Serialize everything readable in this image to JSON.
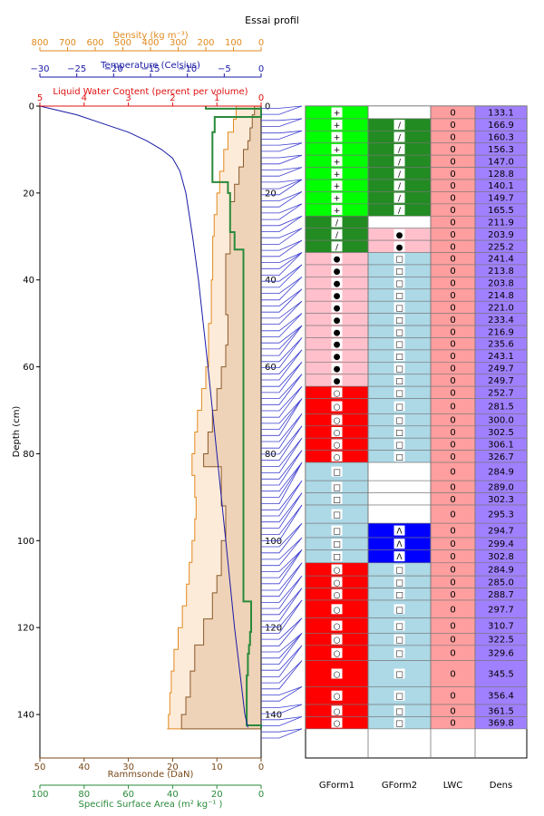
{
  "chart_data": {
    "type": "line",
    "title": "Essai profil",
    "depth_axis": {
      "label": "Depth (cm)",
      "range": [
        0,
        150
      ],
      "ticks": [
        0,
        20,
        40,
        60,
        80,
        100,
        120,
        140
      ]
    },
    "density_axis": {
      "label": "Density (kg m⁻³)",
      "range": [
        800,
        0
      ],
      "ticks": [
        800,
        700,
        600,
        500,
        400,
        300,
        200,
        100,
        0
      ],
      "color": "#e08a1e"
    },
    "temperature_axis": {
      "label": "Temperature (Celsius)",
      "range": [
        -30,
        0
      ],
      "ticks": [
        -30,
        -25,
        -20,
        -15,
        -10,
        -5,
        0
      ],
      "color": "#1a1aa6"
    },
    "lwc_axis": {
      "label": "Liquid Water Content (percent per volume)",
      "range": [
        5,
        0
      ],
      "ticks": [
        5,
        4,
        3,
        2,
        1,
        0
      ],
      "color": "#e01010"
    },
    "ram_axis": {
      "label": "Rammsonde (DaN)",
      "range": [
        50,
        0
      ],
      "ticks": [
        50,
        40,
        30,
        20,
        10,
        0
      ],
      "color": "#7a4a1a"
    },
    "ssa_axis": {
      "label": "Specific Surface Area (m²  kg⁻¹ )",
      "range": [
        100,
        0
      ],
      "ticks": [
        100,
        80,
        60,
        40,
        20,
        0
      ],
      "color": "#2a8a3a"
    },
    "temperature_profile": {
      "depth": [
        0,
        2,
        4,
        6,
        8,
        10,
        12,
        15,
        20,
        30,
        40,
        60,
        80,
        100,
        120,
        140,
        143
      ],
      "values": [
        -30,
        -25,
        -21.5,
        -18,
        -15.5,
        -13.5,
        -12,
        -11,
        -10.2,
        -9.3,
        -8.5,
        -7.2,
        -6,
        -4.8,
        -3.6,
        -2.2,
        -1.8
      ]
    },
    "ssa_profile": {
      "depth": [
        0,
        0.6,
        2.5,
        6,
        14.5,
        17.5,
        20,
        29,
        33,
        61,
        64,
        109,
        114,
        121,
        124,
        126,
        131,
        142.5,
        143.2
      ],
      "values": [
        25,
        0,
        21,
        22,
        22,
        15,
        14,
        12,
        8,
        8,
        8,
        8,
        4.5,
        5,
        5.5,
        6,
        6.5,
        0,
        0
      ]
    },
    "rammsonde_profile": {
      "depth": [
        0,
        2,
        5,
        8,
        10,
        14,
        18,
        22,
        28,
        34,
        40,
        48,
        55,
        60,
        65,
        70,
        75,
        80,
        83,
        88,
        92,
        96,
        100,
        104,
        108,
        112,
        118,
        124,
        130,
        136,
        140,
        143.3
      ],
      "values": [
        1.5,
        2,
        2.5,
        3,
        4,
        5,
        6,
        7,
        7,
        8,
        8,
        7.5,
        8,
        9,
        10,
        11,
        12,
        13,
        9,
        9,
        8,
        8,
        9,
        9,
        10,
        11,
        13,
        15,
        16,
        17,
        18,
        18
      ]
    },
    "density_envelope_profile": {
      "depth": [
        0,
        3,
        6,
        10,
        15,
        20,
        25,
        30,
        40,
        50,
        60,
        65,
        70,
        75,
        80,
        85,
        90,
        95,
        100,
        105,
        110,
        115,
        120,
        125,
        130,
        135,
        140,
        143.3
      ],
      "values": [
        90,
        100,
        120,
        135,
        150,
        160,
        170,
        175,
        180,
        190,
        200,
        215,
        230,
        240,
        250,
        240,
        235,
        240,
        250,
        260,
        270,
        285,
        300,
        315,
        325,
        330,
        335,
        340
      ]
    },
    "layer_boundaries_depth": [
      0.5,
      1.9,
      3.3,
      4.7,
      6.2,
      7.6,
      9.0,
      10.4,
      11.9,
      13.3,
      14.7,
      16.1,
      17.5,
      19.0,
      20.4,
      21.8,
      23.2,
      24.6,
      26.1,
      27.5,
      28.9,
      30.3,
      31.8,
      33.2,
      34.6,
      36.0,
      37.4,
      38.9,
      40.3,
      41.7,
      43.1,
      44.6,
      46.0,
      47.4,
      48.8,
      50.2,
      51.7,
      53.1,
      54.5,
      55.9,
      57.4,
      58.8,
      60.2,
      61.6,
      63.0,
      64.5,
      65.9,
      67.3,
      68.7,
      70.1,
      71.6,
      73.0,
      74.4,
      75.8,
      77.2,
      78.7,
      80.1,
      81.5,
      82.9,
      84.4,
      85.8,
      87.2,
      88.6,
      90.0,
      91.5,
      92.9,
      94.3,
      95.7,
      97.1,
      98.6,
      100.0,
      101.4,
      102.8,
      104.3,
      105.7,
      107.1,
      108.5,
      109.9,
      111.4,
      112.8,
      114.2,
      115.6,
      117.0,
      118.5,
      119.9,
      121.3,
      122.7,
      124.2,
      125.6,
      127.0,
      128.4,
      129.8,
      131.3,
      132.7,
      134.1,
      135.5,
      136.9,
      138.4,
      139.8,
      141.2,
      142.6,
      144.0,
      145.4
    ]
  },
  "table": {
    "columns": [
      "GForm1",
      "GForm2",
      "LWC",
      "Dens"
    ],
    "colors": {
      "green": "#00ff00",
      "dark_green": "#228b22",
      "pink": "#ffc0cb",
      "light_blue": "#add8e6",
      "red": "#ff0000",
      "blue": "#0000ff",
      "lwc": "#ff9e9e",
      "dens": "#a080ff",
      "white": "#ffffff"
    },
    "rows": [
      {
        "top": 0,
        "bottom": 2.9,
        "g1": "+",
        "g1c": "green",
        "g2": "",
        "g2c": "white",
        "lwc": "0",
        "dens": "133.1"
      },
      {
        "top": 2.9,
        "bottom": 5.7,
        "g1": "+",
        "g1c": "green",
        "g2": "/",
        "g2c": "dark_green",
        "lwc": "0",
        "dens": "166.9"
      },
      {
        "top": 5.7,
        "bottom": 8.5,
        "g1": "+",
        "g1c": "green",
        "g2": "/",
        "g2c": "dark_green",
        "lwc": "0",
        "dens": "160.3"
      },
      {
        "top": 8.5,
        "bottom": 11.3,
        "g1": "+",
        "g1c": "green",
        "g2": "/",
        "g2c": "dark_green",
        "lwc": "0",
        "dens": "156.3"
      },
      {
        "top": 11.3,
        "bottom": 14.1,
        "g1": "+",
        "g1c": "green",
        "g2": "/",
        "g2c": "dark_green",
        "lwc": "0",
        "dens": "147.0"
      },
      {
        "top": 14.1,
        "bottom": 16.9,
        "g1": "+",
        "g1c": "green",
        "g2": "/",
        "g2c": "dark_green",
        "lwc": "0",
        "dens": "128.8"
      },
      {
        "top": 16.9,
        "bottom": 19.7,
        "g1": "+",
        "g1c": "green",
        "g2": "/",
        "g2c": "dark_green",
        "lwc": "0",
        "dens": "140.1"
      },
      {
        "top": 19.7,
        "bottom": 22.5,
        "g1": "+",
        "g1c": "green",
        "g2": "/",
        "g2c": "dark_green",
        "lwc": "0",
        "dens": "149.7"
      },
      {
        "top": 22.5,
        "bottom": 25.3,
        "g1": "+",
        "g1c": "green",
        "g2": "/",
        "g2c": "dark_green",
        "lwc": "0",
        "dens": "165.5"
      },
      {
        "top": 25.3,
        "bottom": 28.1,
        "g1": "/",
        "g1c": "dark_green",
        "g2": "",
        "g2c": "white",
        "lwc": "0",
        "dens": "211.9"
      },
      {
        "top": 28.1,
        "bottom": 30.9,
        "g1": "/",
        "g1c": "dark_green",
        "g2": "●",
        "g2c": "pink",
        "lwc": "0",
        "dens": "203.9"
      },
      {
        "top": 30.9,
        "bottom": 33.7,
        "g1": "/",
        "g1c": "dark_green",
        "g2": "●",
        "g2c": "pink",
        "lwc": "0",
        "dens": "225.2"
      },
      {
        "top": 33.7,
        "bottom": 36.5,
        "g1": "●",
        "g1c": "pink",
        "g2": "□",
        "g2c": "light_blue",
        "lwc": "0",
        "dens": "241.4"
      },
      {
        "top": 36.5,
        "bottom": 39.3,
        "g1": "●",
        "g1c": "pink",
        "g2": "□",
        "g2c": "light_blue",
        "lwc": "0",
        "dens": "213.8"
      },
      {
        "top": 39.3,
        "bottom": 42.1,
        "g1": "●",
        "g1c": "pink",
        "g2": "□",
        "g2c": "light_blue",
        "lwc": "0",
        "dens": "203.8"
      },
      {
        "top": 42.1,
        "bottom": 44.9,
        "g1": "●",
        "g1c": "pink",
        "g2": "□",
        "g2c": "light_blue",
        "lwc": "0",
        "dens": "214.8"
      },
      {
        "top": 44.9,
        "bottom": 47.7,
        "g1": "●",
        "g1c": "pink",
        "g2": "□",
        "g2c": "light_blue",
        "lwc": "0",
        "dens": "221.0"
      },
      {
        "top": 47.7,
        "bottom": 50.5,
        "g1": "●",
        "g1c": "pink",
        "g2": "□",
        "g2c": "light_blue",
        "lwc": "0",
        "dens": "233.4"
      },
      {
        "top": 50.5,
        "bottom": 53.3,
        "g1": "●",
        "g1c": "pink",
        "g2": "□",
        "g2c": "light_blue",
        "lwc": "0",
        "dens": "216.9"
      },
      {
        "top": 53.3,
        "bottom": 56.1,
        "g1": "●",
        "g1c": "pink",
        "g2": "□",
        "g2c": "light_blue",
        "lwc": "0",
        "dens": "235.6"
      },
      {
        "top": 56.1,
        "bottom": 58.9,
        "g1": "●",
        "g1c": "pink",
        "g2": "□",
        "g2c": "light_blue",
        "lwc": "0",
        "dens": "243.1"
      },
      {
        "top": 58.9,
        "bottom": 61.7,
        "g1": "●",
        "g1c": "pink",
        "g2": "□",
        "g2c": "light_blue",
        "lwc": "0",
        "dens": "249.7"
      },
      {
        "top": 61.7,
        "bottom": 64.5,
        "g1": "●",
        "g1c": "pink",
        "g2": "□",
        "g2c": "light_blue",
        "lwc": "0",
        "dens": "249.7"
      },
      {
        "top": 64.5,
        "bottom": 67.3,
        "g1": "○",
        "g1c": "red",
        "g2": "□",
        "g2c": "light_blue",
        "lwc": "0",
        "dens": "252.7"
      },
      {
        "top": 67.3,
        "bottom": 70.8,
        "g1": "○",
        "g1c": "red",
        "g2": "□",
        "g2c": "light_blue",
        "lwc": "0",
        "dens": "281.5"
      },
      {
        "top": 70.8,
        "bottom": 73.6,
        "g1": "○",
        "g1c": "red",
        "g2": "□",
        "g2c": "light_blue",
        "lwc": "0",
        "dens": "300.0"
      },
      {
        "top": 73.6,
        "bottom": 76.4,
        "g1": "○",
        "g1c": "red",
        "g2": "□",
        "g2c": "light_blue",
        "lwc": "0",
        "dens": "302.5"
      },
      {
        "top": 76.4,
        "bottom": 79.2,
        "g1": "○",
        "g1c": "red",
        "g2": "□",
        "g2c": "light_blue",
        "lwc": "0",
        "dens": "306.1"
      },
      {
        "top": 79.2,
        "bottom": 82.0,
        "g1": "○",
        "g1c": "red",
        "g2": "□",
        "g2c": "light_blue",
        "lwc": "0",
        "dens": "326.7"
      },
      {
        "top": 82.0,
        "bottom": 86.2,
        "g1": "□",
        "g1c": "light_blue",
        "g2": "",
        "g2c": "white",
        "lwc": "0",
        "dens": "284.9"
      },
      {
        "top": 86.2,
        "bottom": 89.0,
        "g1": "□",
        "g1c": "light_blue",
        "g2": "",
        "g2c": "white",
        "lwc": "0",
        "dens": "289.0"
      },
      {
        "top": 89.0,
        "bottom": 91.8,
        "g1": "□",
        "g1c": "light_blue",
        "g2": "",
        "g2c": "white",
        "lwc": "0",
        "dens": "302.3"
      },
      {
        "top": 91.8,
        "bottom": 96.0,
        "g1": "□",
        "g1c": "light_blue",
        "g2": "",
        "g2c": "white",
        "lwc": "0",
        "dens": "295.3"
      },
      {
        "top": 96.0,
        "bottom": 99.3,
        "g1": "□",
        "g1c": "light_blue",
        "g2": "Λ",
        "g2c": "blue",
        "lwc": "0",
        "dens": "294.7"
      },
      {
        "top": 99.3,
        "bottom": 102.1,
        "g1": "□",
        "g1c": "light_blue",
        "g2": "Λ",
        "g2c": "blue",
        "lwc": "0",
        "dens": "299.4"
      },
      {
        "top": 102.1,
        "bottom": 105.1,
        "g1": "□",
        "g1c": "light_blue",
        "g2": "Λ",
        "g2c": "blue",
        "lwc": "0",
        "dens": "302.8"
      },
      {
        "top": 105.1,
        "bottom": 108.1,
        "g1": "○",
        "g1c": "red",
        "g2": "□",
        "g2c": "light_blue",
        "lwc": "0",
        "dens": "284.9"
      },
      {
        "top": 108.1,
        "bottom": 110.9,
        "g1": "○",
        "g1c": "red",
        "g2": "□",
        "g2c": "light_blue",
        "lwc": "0",
        "dens": "285.0"
      },
      {
        "top": 110.9,
        "bottom": 113.7,
        "g1": "○",
        "g1c": "red",
        "g2": "□",
        "g2c": "light_blue",
        "lwc": "0",
        "dens": "288.7"
      },
      {
        "top": 113.7,
        "bottom": 117.8,
        "g1": "○",
        "g1c": "red",
        "g2": "□",
        "g2c": "light_blue",
        "lwc": "0",
        "dens": "297.7"
      },
      {
        "top": 117.8,
        "bottom": 121.3,
        "g1": "○",
        "g1c": "red",
        "g2": "□",
        "g2c": "light_blue",
        "lwc": "0",
        "dens": "310.7"
      },
      {
        "top": 121.3,
        "bottom": 124.1,
        "g1": "○",
        "g1c": "red",
        "g2": "□",
        "g2c": "light_blue",
        "lwc": "0",
        "dens": "322.5"
      },
      {
        "top": 124.1,
        "bottom": 127.6,
        "g1": "○",
        "g1c": "red",
        "g2": "□",
        "g2c": "light_blue",
        "lwc": "0",
        "dens": "329.6"
      },
      {
        "top": 127.6,
        "bottom": 133.6,
        "g1": "○",
        "g1c": "red",
        "g2": "□",
        "g2c": "light_blue",
        "lwc": "0",
        "dens": "345.5"
      },
      {
        "top": 133.6,
        "bottom": 137.7,
        "g1": "○",
        "g1c": "red",
        "g2": "□",
        "g2c": "light_blue",
        "lwc": "0",
        "dens": "356.4"
      },
      {
        "top": 137.7,
        "bottom": 140.5,
        "g1": "○",
        "g1c": "red",
        "g2": "□",
        "g2c": "light_blue",
        "lwc": "0",
        "dens": "361.5"
      },
      {
        "top": 140.5,
        "bottom": 143.3,
        "g1": "○",
        "g1c": "red",
        "g2": "□",
        "g2c": "light_blue",
        "lwc": "0",
        "dens": "369.8"
      }
    ]
  }
}
